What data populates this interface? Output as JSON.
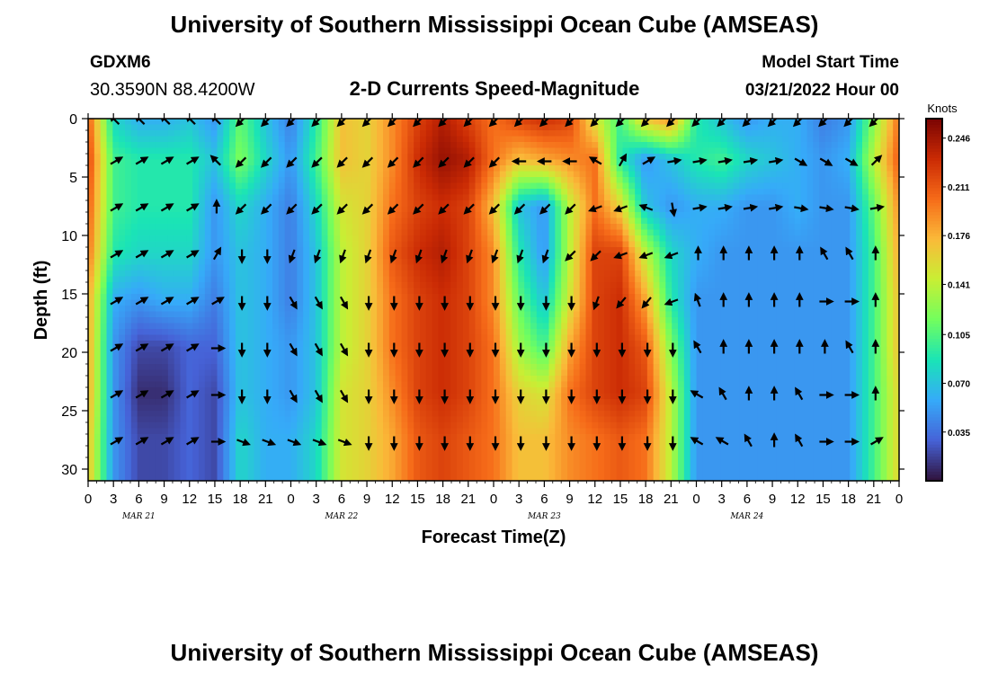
{
  "header": {
    "title": "University of Southern Mississippi Ocean Cube (AMSEAS)",
    "station": "GDXM6",
    "location": "30.3590N  88.4200W",
    "subtitle": "2-D Currents Speed-Magnitude",
    "model_start_label": "Model Start Time",
    "model_start_value": "03/21/2022 Hour 00"
  },
  "footer": {
    "title": "University of Southern Mississippi Ocean Cube (AMSEAS)"
  },
  "chart_data": {
    "type": "heatmap",
    "title": "2-D Currents Speed-Magnitude",
    "xlabel": "Forecast Time(Z)",
    "ylabel": "Depth (ft)",
    "x_tick_labels": [
      "0",
      "3",
      "6",
      "9",
      "12",
      "15",
      "18",
      "21",
      "0",
      "3",
      "6",
      "9",
      "12",
      "15",
      "18",
      "21",
      "0",
      "3",
      "6",
      "9",
      "12",
      "15",
      "18",
      "21",
      "0",
      "3",
      "6",
      "9",
      "12",
      "15",
      "18",
      "21",
      "0"
    ],
    "date_labels": [
      "MAR 21",
      "MAR 22",
      "MAR 23",
      "MAR 24"
    ],
    "ylim": [
      31,
      0
    ],
    "y_ticks": [
      0,
      5,
      10,
      15,
      20,
      25,
      30
    ],
    "colorbar": {
      "title": "Knots",
      "range": [
        0.0,
        0.26
      ],
      "tick_labels": [
        "0.246",
        "0.211",
        "0.176",
        "0.141",
        "0.105",
        "0.070",
        "0.035"
      ],
      "tick_values": [
        0.246,
        0.211,
        0.176,
        0.141,
        0.105,
        0.07,
        0.035
      ],
      "colormap": [
        "#30123b",
        "#4662d7",
        "#36aaf9",
        "#1ae4b6",
        "#72fe5e",
        "#c8ef34",
        "#faba39",
        "#f66b19",
        "#ca2a04",
        "#7a0403"
      ]
    },
    "depths_ft": [
      0,
      3.5,
      7.5,
      11.5,
      15.5,
      19.5,
      23.5,
      27.5
    ],
    "time_hours": [
      0,
      3,
      6,
      9,
      12,
      15,
      18,
      21,
      24,
      27,
      30,
      33,
      36,
      39,
      42,
      45,
      48,
      51,
      54,
      57,
      60,
      63,
      66,
      69,
      72,
      75,
      78,
      81,
      84,
      87,
      90,
      93,
      96
    ],
    "speed_knots": [
      [
        0.21,
        0.08,
        0.06,
        0.06,
        0.07,
        0.05,
        0.11,
        0.07,
        0.04,
        0.09,
        0.17,
        0.16,
        0.19,
        0.22,
        0.24,
        0.22,
        0.2,
        0.22,
        0.23,
        0.22,
        0.15,
        0.1,
        0.17,
        0.19,
        0.09,
        0.07,
        0.05,
        0.06,
        0.06,
        0.04,
        0.05,
        0.12,
        0.2
      ],
      [
        0.22,
        0.1,
        0.09,
        0.09,
        0.09,
        0.07,
        0.12,
        0.08,
        0.05,
        0.1,
        0.17,
        0.16,
        0.19,
        0.23,
        0.25,
        0.24,
        0.2,
        0.17,
        0.18,
        0.19,
        0.2,
        0.09,
        0.05,
        0.07,
        0.09,
        0.1,
        0.08,
        0.07,
        0.06,
        0.05,
        0.06,
        0.14,
        0.21
      ],
      [
        0.21,
        0.1,
        0.09,
        0.09,
        0.09,
        0.05,
        0.08,
        0.06,
        0.04,
        0.08,
        0.15,
        0.16,
        0.2,
        0.22,
        0.23,
        0.22,
        0.17,
        0.07,
        0.05,
        0.14,
        0.2,
        0.16,
        0.07,
        0.05,
        0.06,
        0.06,
        0.05,
        0.05,
        0.06,
        0.05,
        0.05,
        0.11,
        0.19
      ],
      [
        0.2,
        0.09,
        0.08,
        0.08,
        0.08,
        0.05,
        0.07,
        0.06,
        0.04,
        0.07,
        0.14,
        0.16,
        0.21,
        0.23,
        0.24,
        0.22,
        0.19,
        0.09,
        0.05,
        0.14,
        0.22,
        0.22,
        0.14,
        0.08,
        0.06,
        0.05,
        0.05,
        0.05,
        0.05,
        0.05,
        0.05,
        0.1,
        0.18
      ],
      [
        0.18,
        0.06,
        0.05,
        0.06,
        0.06,
        0.04,
        0.07,
        0.06,
        0.04,
        0.07,
        0.14,
        0.16,
        0.2,
        0.22,
        0.23,
        0.22,
        0.19,
        0.11,
        0.07,
        0.15,
        0.22,
        0.23,
        0.18,
        0.09,
        0.05,
        0.05,
        0.05,
        0.05,
        0.05,
        0.05,
        0.05,
        0.1,
        0.17
      ],
      [
        0.18,
        0.05,
        0.02,
        0.02,
        0.03,
        0.03,
        0.07,
        0.06,
        0.05,
        0.07,
        0.14,
        0.16,
        0.2,
        0.22,
        0.23,
        0.22,
        0.2,
        0.13,
        0.1,
        0.18,
        0.22,
        0.23,
        0.21,
        0.12,
        0.05,
        0.05,
        0.05,
        0.05,
        0.05,
        0.05,
        0.05,
        0.1,
        0.17
      ],
      [
        0.18,
        0.05,
        0.01,
        0.01,
        0.03,
        0.02,
        0.07,
        0.06,
        0.05,
        0.07,
        0.15,
        0.16,
        0.19,
        0.22,
        0.23,
        0.22,
        0.2,
        0.16,
        0.15,
        0.2,
        0.22,
        0.23,
        0.22,
        0.14,
        0.05,
        0.05,
        0.05,
        0.05,
        0.05,
        0.05,
        0.05,
        0.1,
        0.16
      ],
      [
        0.17,
        0.05,
        0.02,
        0.02,
        0.03,
        0.02,
        0.08,
        0.06,
        0.06,
        0.08,
        0.15,
        0.16,
        0.18,
        0.21,
        0.22,
        0.21,
        0.2,
        0.17,
        0.17,
        0.19,
        0.2,
        0.21,
        0.2,
        0.14,
        0.05,
        0.05,
        0.05,
        0.05,
        0.05,
        0.05,
        0.05,
        0.1,
        0.16
      ]
    ],
    "direction_deg": [
      [
        315,
        315,
        315,
        315,
        315,
        315,
        225,
        225,
        225,
        225,
        225,
        225,
        225,
        225,
        225,
        225,
        225,
        225,
        225,
        225,
        225,
        225,
        225,
        225,
        225,
        225,
        225,
        225,
        225,
        225,
        225,
        225,
        225
      ],
      [
        60,
        60,
        60,
        60,
        60,
        315,
        225,
        225,
        225,
        225,
        225,
        225,
        225,
        225,
        225,
        225,
        225,
        270,
        270,
        270,
        300,
        30,
        60,
        80,
        80,
        80,
        80,
        80,
        120,
        120,
        120,
        45,
        45
      ],
      [
        60,
        60,
        60,
        60,
        60,
        0,
        225,
        225,
        225,
        225,
        225,
        225,
        225,
        225,
        225,
        225,
        225,
        225,
        225,
        225,
        250,
        250,
        290,
        170,
        80,
        80,
        80,
        80,
        100,
        100,
        100,
        80,
        80
      ],
      [
        60,
        60,
        60,
        60,
        60,
        30,
        180,
        180,
        200,
        200,
        200,
        200,
        200,
        200,
        200,
        200,
        200,
        200,
        200,
        225,
        225,
        250,
        250,
        250,
        0,
        0,
        0,
        0,
        0,
        330,
        330,
        0,
        0
      ],
      [
        60,
        60,
        60,
        60,
        60,
        60,
        180,
        180,
        150,
        150,
        150,
        180,
        180,
        180,
        180,
        180,
        180,
        180,
        180,
        180,
        200,
        220,
        220,
        250,
        340,
        0,
        0,
        0,
        0,
        90,
        90,
        0,
        0
      ],
      [
        60,
        60,
        60,
        60,
        60,
        90,
        180,
        180,
        150,
        150,
        150,
        180,
        180,
        180,
        180,
        180,
        180,
        180,
        180,
        180,
        180,
        180,
        180,
        180,
        330,
        0,
        0,
        0,
        0,
        0,
        330,
        0,
        0
      ],
      [
        60,
        60,
        60,
        60,
        60,
        90,
        180,
        180,
        150,
        150,
        150,
        180,
        180,
        180,
        180,
        180,
        180,
        180,
        180,
        180,
        180,
        180,
        180,
        180,
        300,
        330,
        0,
        0,
        330,
        90,
        90,
        0,
        0
      ],
      [
        60,
        60,
        60,
        60,
        60,
        90,
        110,
        110,
        110,
        110,
        110,
        180,
        180,
        180,
        180,
        180,
        180,
        180,
        180,
        180,
        180,
        180,
        180,
        180,
        300,
        300,
        330,
        0,
        330,
        90,
        90,
        60,
        60
      ]
    ]
  }
}
